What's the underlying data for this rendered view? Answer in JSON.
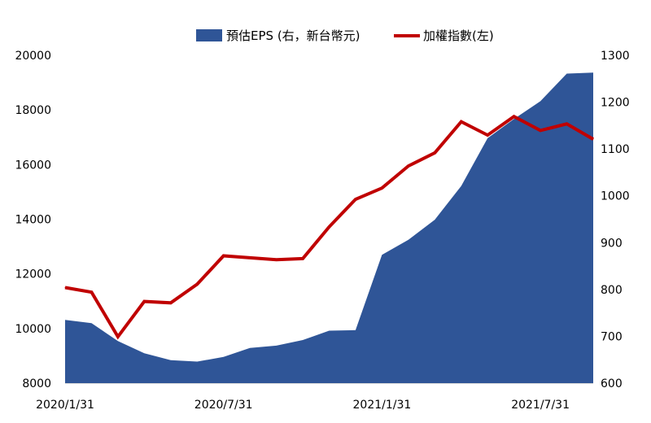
{
  "chart_data": {
    "type": "area+line",
    "x": [
      "2020/1/31",
      "2020/2/29",
      "2020/3/31",
      "2020/4/30",
      "2020/5/31",
      "2020/6/30",
      "2020/7/31",
      "2020/8/31",
      "2020/9/30",
      "2020/10/31",
      "2020/11/30",
      "2020/12/31",
      "2021/1/31",
      "2021/2/28",
      "2021/3/31",
      "2021/4/30",
      "2021/5/31",
      "2021/6/30",
      "2021/7/31",
      "2021/8/31",
      "2021/9/30"
    ],
    "x_tick_labels": [
      "2020/1/31",
      "2020/7/31",
      "2021/1/31",
      "2021/7/31"
    ],
    "y_left": {
      "min": 8000,
      "max": 20000,
      "ticks": [
        "8000",
        "10000",
        "12000",
        "14000",
        "16000",
        "18000",
        "20000"
      ]
    },
    "y_right": {
      "min": 600,
      "max": 1300,
      "ticks": [
        "600",
        "700",
        "800",
        "900",
        "1000",
        "1100",
        "1200",
        "1300"
      ]
    },
    "series": [
      {
        "name": "預估EPS (右，新台幣元)",
        "kind": "area",
        "axis": "right",
        "color": "#2f5597",
        "values": [
          735,
          728,
          690,
          664,
          649,
          646,
          656,
          675,
          680,
          692,
          712,
          713,
          874,
          906,
          949,
          1021,
          1123,
          1164,
          1202,
          1261,
          1263
        ]
      },
      {
        "name": "加權指數(左)",
        "kind": "line",
        "axis": "left",
        "color": "#c00000",
        "values": [
          11500,
          11330,
          9700,
          10990,
          10940,
          11620,
          12660,
          12590,
          12520,
          12560,
          13720,
          14730,
          15140,
          15950,
          16430,
          17570,
          17080,
          17760,
          17250,
          17490,
          16930
        ]
      }
    ],
    "legend": {
      "placement": "top-center"
    },
    "grid": false
  }
}
